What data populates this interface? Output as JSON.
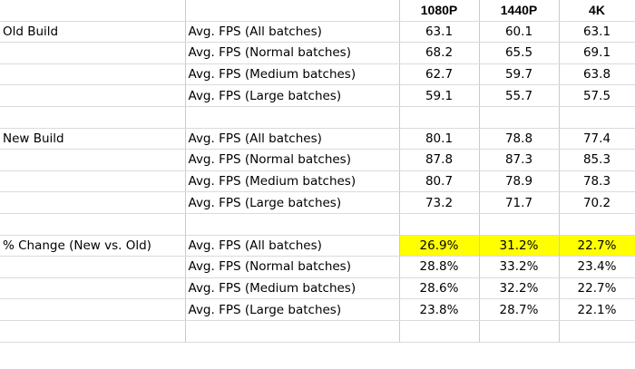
{
  "header": {
    "columns": [
      "",
      "",
      "1080P",
      "1440P",
      "4K"
    ]
  },
  "highlight_color": "#ffff00",
  "groups": [
    {
      "label": "Old Build",
      "rows": [
        {
          "metric": "Avg. FPS (All batches)",
          "values": [
            "63.1",
            "60.1",
            "63.1"
          ]
        },
        {
          "metric": "Avg. FPS (Normal batches)",
          "values": [
            "68.2",
            "65.5",
            "69.1"
          ]
        },
        {
          "metric": "Avg. FPS (Medium batches)",
          "values": [
            "62.7",
            "59.7",
            "63.8"
          ]
        },
        {
          "metric": "Avg. FPS (Large batches)",
          "values": [
            "59.1",
            "55.7",
            "57.5"
          ]
        }
      ]
    },
    {
      "label": "New Build",
      "rows": [
        {
          "metric": "Avg. FPS (All batches)",
          "values": [
            "80.1",
            "78.8",
            "77.4"
          ]
        },
        {
          "metric": "Avg. FPS (Normal batches)",
          "values": [
            "87.8",
            "87.3",
            "85.3"
          ]
        },
        {
          "metric": "Avg. FPS (Medium batches)",
          "values": [
            "80.7",
            "78.9",
            "78.3"
          ]
        },
        {
          "metric": "Avg. FPS (Large batches)",
          "values": [
            "73.2",
            "71.7",
            "70.2"
          ]
        }
      ]
    },
    {
      "label": "% Change (New vs. Old)",
      "rows": [
        {
          "metric": "Avg. FPS (All batches)",
          "values": [
            "26.9%",
            "31.2%",
            "22.7%"
          ],
          "highlighted": true
        },
        {
          "metric": "Avg. FPS (Normal batches)",
          "values": [
            "28.8%",
            "33.2%",
            "23.4%"
          ]
        },
        {
          "metric": "Avg. FPS (Medium batches)",
          "values": [
            "28.6%",
            "32.2%",
            "22.7%"
          ]
        },
        {
          "metric": "Avg. FPS (Large batches)",
          "values": [
            "23.8%",
            "28.7%",
            "22.1%"
          ]
        }
      ]
    }
  ]
}
